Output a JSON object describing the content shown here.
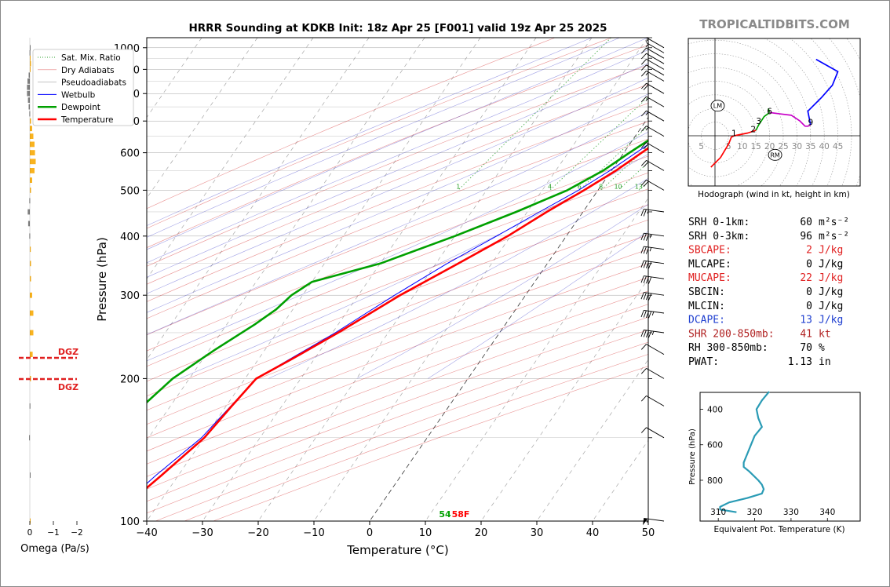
{
  "header": {
    "title": "HRRR Sounding at KDKB Init: 18z Apr 25 [F001] valid 19z Apr 25 2025",
    "watermark": "TROPICALTIDBITS.COM"
  },
  "skewt": {
    "xlabel": "Temperature (°C)",
    "ylabel": "Pressure (hPa)",
    "xlim": [
      -40,
      50
    ],
    "plim": [
      1050,
      100
    ],
    "x_ticks": [
      "−40",
      "−30",
      "−20",
      "−10",
      "0",
      "10",
      "20",
      "30",
      "40",
      "50"
    ],
    "x_tick_values": [
      -40,
      -30,
      -20,
      -10,
      0,
      10,
      20,
      30,
      40,
      50
    ],
    "p_ticks": [
      100,
      200,
      300,
      400,
      500,
      600,
      700,
      800,
      900,
      1000
    ],
    "mixing_ratio_labels": [
      "1",
      "4",
      "6",
      "8",
      "10",
      "13",
      "16",
      "20",
      "24",
      "30",
      "36"
    ],
    "mixing_ratio_values": [
      1,
      4,
      6,
      8,
      10,
      13,
      16,
      20,
      24,
      30,
      36
    ],
    "surface_dewpoint_label": "54",
    "surface_temp_label": "58F",
    "legend": [
      {
        "label": "Sat. Mix. Ratio",
        "color": "#2ca02c",
        "style": "dotted"
      },
      {
        "label": "Dry Adiabats",
        "color": "#d62728",
        "style": "thin"
      },
      {
        "label": "Pseudoadiabats",
        "color": "#7f7f7f",
        "style": "thin"
      },
      {
        "label": "Wetbulb",
        "color": "#0000ff",
        "style": "solid"
      },
      {
        "label": "Dewpoint",
        "color": "#00a000",
        "style": "thick"
      },
      {
        "label": "Temperature",
        "color": "#ff0000",
        "style": "thick"
      }
    ]
  },
  "chart_data": [
    {
      "type": "line",
      "name": "skew-t",
      "series": [
        {
          "name": "Temperature",
          "color": "#ff0000",
          "points": [
            [
              1000,
              12.5
            ],
            [
              980,
              13.5
            ],
            [
              960,
              15.5
            ],
            [
              930,
              16.5
            ],
            [
              900,
              16.2
            ],
            [
              870,
              15.8
            ],
            [
              850,
              15.0
            ],
            [
              800,
              12.5
            ],
            [
              750,
              10.0
            ],
            [
              700,
              7.5
            ],
            [
              650,
              5.5
            ],
            [
              600,
              3.2
            ],
            [
              550,
              0.8
            ],
            [
              500,
              -2.5
            ],
            [
              450,
              -6.5
            ],
            [
              400,
              -10.5
            ],
            [
              350,
              -16
            ],
            [
              300,
              -22.5
            ],
            [
              250,
              -29
            ],
            [
              220,
              -34
            ],
            [
              200,
              -38
            ],
            [
              175,
              -39
            ],
            [
              150,
              -40
            ],
            [
              125,
              -43
            ],
            [
              100,
              -47
            ]
          ]
        },
        {
          "name": "Dewpoint",
          "color": "#00a000",
          "points": [
            [
              1000,
              12.0
            ],
            [
              970,
              11.8
            ],
            [
              950,
              12.2
            ],
            [
              920,
              13.5
            ],
            [
              900,
              14.0
            ],
            [
              870,
              14.2
            ],
            [
              850,
              13.8
            ],
            [
              800,
              10.5
            ],
            [
              770,
              7.0
            ],
            [
              740,
              5.5
            ],
            [
              700,
              4.5
            ],
            [
              650,
              3.5
            ],
            [
              600,
              1.0
            ],
            [
              550,
              -1.5
            ],
            [
              500,
              -5.5
            ],
            [
              450,
              -12
            ],
            [
              400,
              -20
            ],
            [
              350,
              -30
            ],
            [
              320,
              -40
            ],
            [
              300,
              -42
            ],
            [
              280,
              -43
            ],
            [
              260,
              -45
            ],
            [
              230,
              -49
            ],
            [
              200,
              -53
            ],
            [
              175,
              -55
            ],
            [
              150,
              -58
            ],
            [
              125,
              -63
            ],
            [
              100,
              -66
            ]
          ]
        },
        {
          "name": "Wetbulb",
          "color": "#0000ff",
          "points": [
            [
              1000,
              12.2
            ],
            [
              950,
              13.5
            ],
            [
              900,
              15.2
            ],
            [
              850,
              14.5
            ],
            [
              800,
              11.5
            ],
            [
              750,
              8.5
            ],
            [
              700,
              6.0
            ],
            [
              650,
              4.5
            ],
            [
              600,
              2.2
            ],
            [
              550,
              -0.3
            ],
            [
              500,
              -3.5
            ],
            [
              450,
              -7.8
            ],
            [
              400,
              -12.5
            ],
            [
              350,
              -18
            ],
            [
              300,
              -23.5
            ],
            [
              250,
              -29.5
            ],
            [
              200,
              -38
            ],
            [
              150,
              -40.5
            ],
            [
              125,
              -44
            ],
            [
              100,
              -47.5
            ]
          ]
        }
      ]
    },
    {
      "type": "bar",
      "name": "omega",
      "xlabel": "Omega (Pa/s)",
      "x_ticks": [
        "0",
        "−1",
        "−2"
      ],
      "x_tick_values": [
        0,
        -1,
        -2
      ],
      "dgz_label": "DGZ",
      "dgz_top_hpa": 475,
      "dgz_bottom_hpa": 525,
      "levels": [
        [
          100,
          -0.02
        ],
        [
          125,
          0
        ],
        [
          150,
          0.03
        ],
        [
          175,
          0.01
        ],
        [
          200,
          -0.05
        ],
        [
          225,
          -0.12
        ],
        [
          250,
          -0.15
        ],
        [
          275,
          -0.15
        ],
        [
          300,
          -0.1
        ],
        [
          325,
          -0.05
        ],
        [
          350,
          -0.05
        ],
        [
          375,
          -0.04
        ],
        [
          400,
          0.02
        ],
        [
          425,
          0.07
        ],
        [
          450,
          0.09
        ],
        [
          475,
          0.02
        ],
        [
          500,
          -0.05
        ],
        [
          525,
          -0.1
        ],
        [
          550,
          -0.2
        ],
        [
          575,
          -0.25
        ],
        [
          600,
          -0.22
        ],
        [
          625,
          -0.2
        ],
        [
          650,
          -0.15
        ],
        [
          675,
          -0.1
        ],
        [
          700,
          -0.05
        ],
        [
          725,
          0.02
        ],
        [
          750,
          0.05
        ],
        [
          775,
          0.08
        ],
        [
          800,
          0.12
        ],
        [
          825,
          0.12
        ],
        [
          850,
          0.1
        ],
        [
          875,
          0.05
        ],
        [
          900,
          -0.02
        ],
        [
          925,
          -0.05
        ],
        [
          950,
          -0.02
        ],
        [
          975,
          0.01
        ],
        [
          1000,
          0
        ]
      ]
    },
    {
      "type": "line",
      "name": "hodograph",
      "caption": "Hodograph (wind in kt, height in km)",
      "ring_labels": [
        "5",
        "5",
        "10",
        "15",
        "20",
        "25",
        "30",
        "35",
        "40",
        "45"
      ],
      "ring_label_u": [
        -5,
        5,
        10,
        15,
        20,
        25,
        30,
        35,
        40,
        45
      ],
      "height_labels": [
        {
          "text": "1",
          "u": 7,
          "v": 1
        },
        {
          "text": "2",
          "u": 14,
          "v": 2.5
        },
        {
          "text": "3",
          "u": 16,
          "v": 5.5
        },
        {
          "text": "6",
          "u": 20,
          "v": 9
        },
        {
          "text": "9",
          "u": 35,
          "v": 5
        }
      ],
      "lm_label": "LM",
      "lm": [
        1,
        11
      ],
      "rm_label": "RM",
      "rm": [
        22,
        -7
      ],
      "segments": [
        {
          "color": "#ff0000",
          "points": [
            [
              -1.5,
              -11.5
            ],
            [
              -1,
              -11
            ],
            [
              2,
              -8
            ],
            [
              5,
              -3
            ],
            [
              6,
              -0.5
            ],
            [
              7,
              0
            ],
            [
              12,
              1
            ],
            [
              15,
              2
            ]
          ]
        },
        {
          "color": "#00a000",
          "points": [
            [
              15,
              2
            ],
            [
              16,
              4
            ],
            [
              18,
              7
            ],
            [
              20,
              8.5
            ],
            [
              19.5,
              10
            ]
          ]
        },
        {
          "color": "#c800c8",
          "points": [
            [
              20,
              8.5
            ],
            [
              24,
              8
            ],
            [
              28,
              7.5
            ],
            [
              31,
              5.5
            ],
            [
              33,
              3.5
            ],
            [
              34,
              3.5
            ],
            [
              35,
              4
            ]
          ]
        },
        {
          "color": "#0000ff",
          "points": [
            [
              35,
              4
            ],
            [
              34,
              9
            ],
            [
              39,
              14
            ],
            [
              43,
              18.5
            ],
            [
              45,
              23.5
            ],
            [
              37,
              28
            ]
          ]
        }
      ]
    },
    {
      "type": "line",
      "name": "theta-e",
      "xlabel": "Equivalent Pot. Temperature (K)",
      "ylabel": "Pressure (hPa)",
      "x_ticks": [
        "310",
        "320",
        "330",
        "340"
      ],
      "x_tick_values": [
        310,
        320,
        330,
        340
      ],
      "y_ticks": [
        "400",
        "600",
        "800"
      ],
      "y_tick_values": [
        400,
        600,
        800
      ],
      "color": "#2a9bb5",
      "points": [
        [
          300,
          324
        ],
        [
          350,
          322
        ],
        [
          400,
          320.5
        ],
        [
          450,
          321
        ],
        [
          500,
          322
        ],
        [
          550,
          320
        ],
        [
          600,
          319
        ],
        [
          650,
          318
        ],
        [
          700,
          317
        ],
        [
          725,
          317
        ],
        [
          750,
          318.5
        ],
        [
          800,
          321
        ],
        [
          825,
          322
        ],
        [
          850,
          322.5
        ],
        [
          875,
          322
        ],
        [
          900,
          318
        ],
        [
          925,
          313
        ],
        [
          950,
          310.5
        ],
        [
          965,
          310.5
        ],
        [
          980,
          315
        ]
      ]
    }
  ],
  "winds": {
    "levels_hpa": [
      100,
      150,
      175,
      200,
      225,
      250,
      275,
      300,
      325,
      350,
      375,
      400,
      450,
      500,
      550,
      600,
      650,
      700,
      750,
      800,
      850,
      875,
      900,
      925,
      950,
      975,
      1000
    ],
    "speeds_kt": [
      55,
      10,
      10,
      10,
      10,
      45,
      45,
      40,
      40,
      40,
      35,
      35,
      25,
      20,
      20,
      20,
      15,
      15,
      15,
      20,
      15,
      10,
      10,
      10,
      10,
      5,
      5
    ]
  },
  "stats": [
    {
      "label": "SRH 0-1km:",
      "value": "60",
      "unit": "m²s⁻²",
      "color": "#000000"
    },
    {
      "label": "SRH 0-3km:",
      "value": "96",
      "unit": "m²s⁻²",
      "color": "#000000"
    },
    {
      "label": "SBCAPE:",
      "value": "2",
      "unit": "J/kg",
      "color": "#e02020"
    },
    {
      "label": "MLCAPE:",
      "value": "0",
      "unit": "J/kg",
      "color": "#000000"
    },
    {
      "label": "MUCAPE:",
      "value": "22",
      "unit": "J/kg",
      "color": "#e02020"
    },
    {
      "label": "SBCIN:",
      "value": "0",
      "unit": "J/kg",
      "color": "#000000"
    },
    {
      "label": "MLCIN:",
      "value": "0",
      "unit": "J/kg",
      "color": "#000000"
    },
    {
      "label": "DCAPE:",
      "value": "13",
      "unit": "J/kg",
      "color": "#2040d0"
    },
    {
      "label": "SHR 200-850mb:",
      "value": "41",
      "unit": "kt",
      "color": "#b02020"
    },
    {
      "label": "RH 300-850mb:",
      "value": "70",
      "unit": "%",
      "color": "#000000"
    },
    {
      "label": "PWAT:",
      "value": "1.13",
      "unit": "in",
      "color": "#000000"
    }
  ]
}
